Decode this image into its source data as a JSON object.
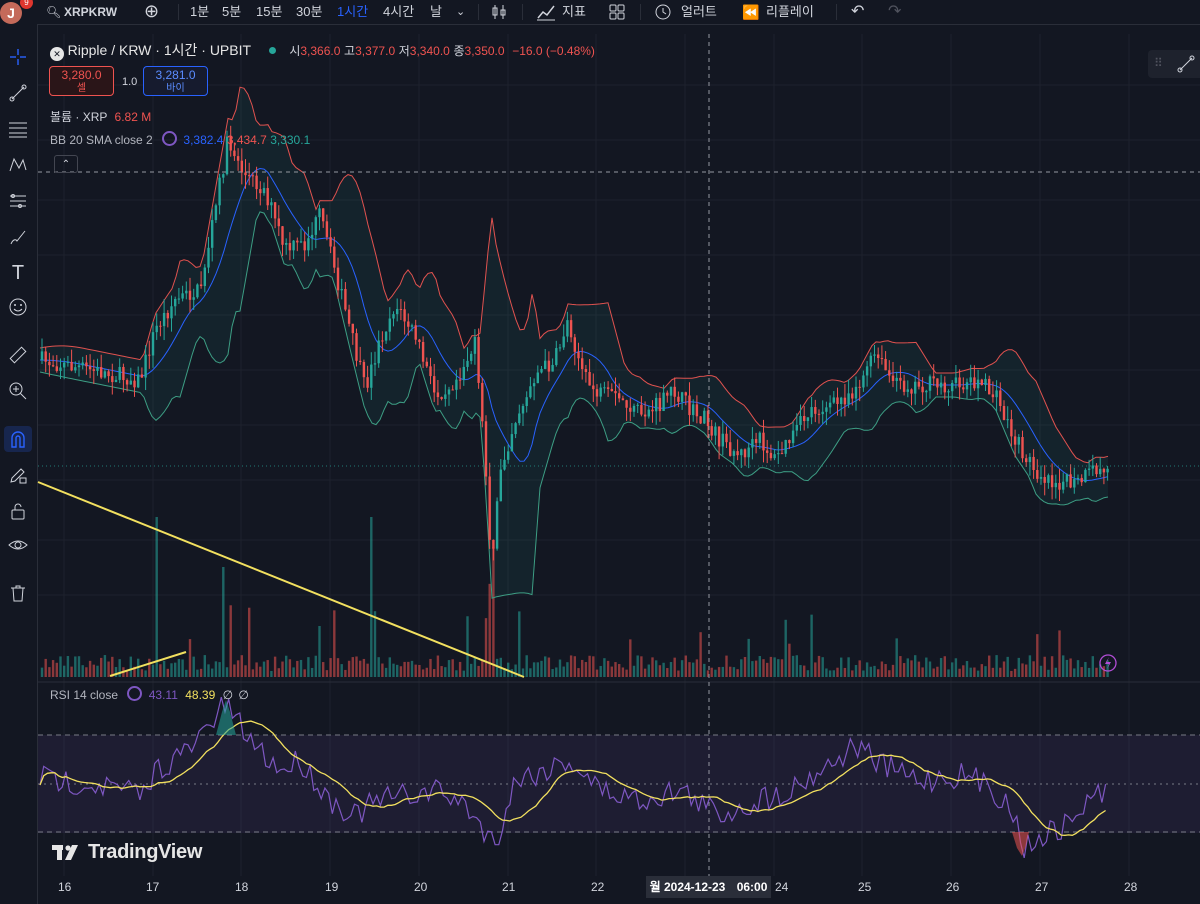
{
  "topbar": {
    "avatar_letter": "J",
    "avatar_badge": "9",
    "symbol": "XRPKRW",
    "intervals": [
      "1분",
      "5분",
      "15분",
      "30분",
      "1시간",
      "4시간",
      "날"
    ],
    "active_interval": "1시간",
    "indicators_label": "지표",
    "alert_label": "얼러트",
    "replay_label": "리플레이"
  },
  "legend": {
    "title": "Ripple / KRW · 1시간 · UPBIT",
    "open_label": "시",
    "open": "3,366.0",
    "high_label": "고",
    "high": "3,377.0",
    "low_label": "저",
    "low": "3,340.0",
    "close_label": "종",
    "close": "3,350.0",
    "change": "−16.0 (−0.48%)",
    "sell_price": "3,280.0",
    "sell_label": "셀",
    "spread": "1.0",
    "buy_price": "3,281.0",
    "buy_label": "바이",
    "volume_label": "볼륨 · XRP",
    "volume_value": "6.82 M",
    "bb_label": "BB 20 SMA close 2",
    "bb_basis": "3,382.4",
    "bb_upper": "3,434.7",
    "bb_lower": "3,330.1",
    "rsi_label": "RSI 14 close",
    "rsi_value": "43.11",
    "rsi_ma": "48.39",
    "rsi_extra1": "∅",
    "rsi_extra2": "∅"
  },
  "xaxis": {
    "labels": [
      "16",
      "17",
      "18",
      "19",
      "20",
      "21",
      "22",
      "24",
      "25",
      "26",
      "27",
      "28"
    ],
    "crosshair_date": "월 2024-12-23",
    "crosshair_time": "06:00"
  },
  "brand": "TradingView",
  "colors": {
    "background": "#131722",
    "up": "#26a69a",
    "down": "#ef5350",
    "bb_upper": "#e0524f",
    "bb_basis": "#2962ff",
    "bb_lower": "#3d9e84",
    "rsi_line": "#7e57c2",
    "rsi_ma": "#f2e05f",
    "trendline": "#f2e05f",
    "accent": "#2962ff"
  },
  "icons": [
    "crosshair-icon",
    "trend-line-icon",
    "fib-icon",
    "pattern-icon",
    "projection-icon",
    "brush-icon",
    "text-icon",
    "emoji-icon",
    "ruler-icon",
    "zoom-icon",
    "magnet-icon",
    "pencil-lock-icon",
    "lock-icon",
    "eye-icon",
    "trash-icon"
  ]
}
